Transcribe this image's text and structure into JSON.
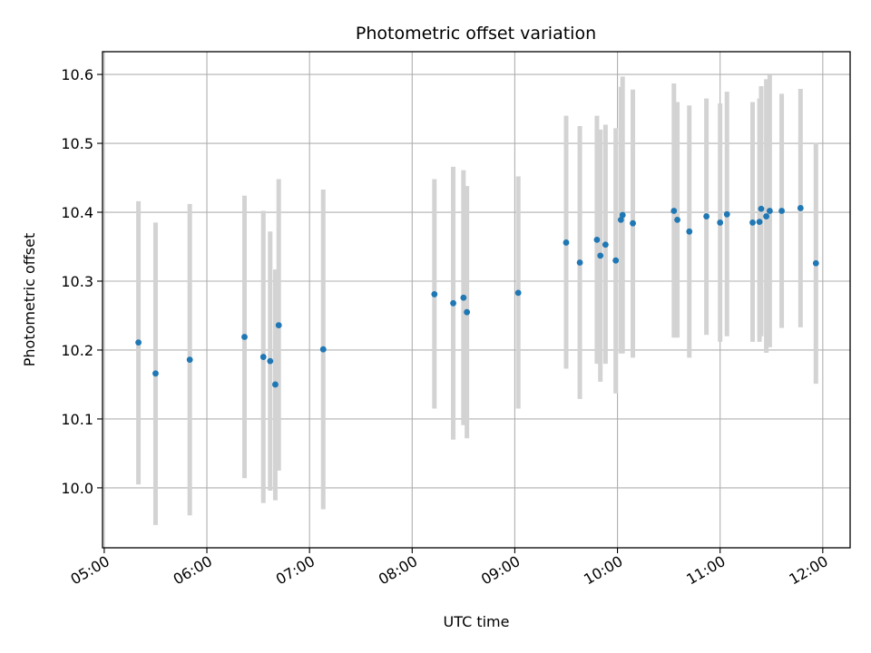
{
  "chart_data": {
    "type": "scatter",
    "title": "Photometric offset variation",
    "xlabel": "UTC time",
    "ylabel": "Photometric offset",
    "x_ticks": [
      "05:00",
      "06:00",
      "07:00",
      "08:00",
      "09:00",
      "10:00",
      "11:00",
      "12:00"
    ],
    "y_ticks": [
      "10.0",
      "10.1",
      "10.2",
      "10.3",
      "10.4",
      "10.5",
      "10.6"
    ],
    "xlim": [
      "04:59",
      "12:16"
    ],
    "ylim": [
      9.913,
      10.633
    ],
    "grid": true,
    "colors": {
      "points": "#1f77b4",
      "errorbars": "#d3d3d3",
      "grid": "#b0b0b0"
    },
    "points": [
      {
        "t": "05:20",
        "y": 10.211,
        "lo": 10.005,
        "hi": 10.416
      },
      {
        "t": "05:30",
        "y": 10.166,
        "lo": 9.946,
        "hi": 10.385
      },
      {
        "t": "05:50",
        "y": 10.186,
        "lo": 9.96,
        "hi": 10.412
      },
      {
        "t": "06:22",
        "y": 10.219,
        "lo": 10.014,
        "hi": 10.424
      },
      {
        "t": "06:33",
        "y": 10.19,
        "lo": 9.978,
        "hi": 10.402
      },
      {
        "t": "06:37",
        "y": 10.184,
        "lo": 9.996,
        "hi": 10.372
      },
      {
        "t": "06:40",
        "y": 10.15,
        "lo": 9.982,
        "hi": 10.317
      },
      {
        "t": "06:42",
        "y": 10.236,
        "lo": 10.025,
        "hi": 10.448
      },
      {
        "t": "07:08",
        "y": 10.201,
        "lo": 9.969,
        "hi": 10.433
      },
      {
        "t": "08:13",
        "y": 10.281,
        "lo": 10.115,
        "hi": 10.448
      },
      {
        "t": "08:24",
        "y": 10.268,
        "lo": 10.07,
        "hi": 10.466
      },
      {
        "t": "08:30",
        "y": 10.276,
        "lo": 10.091,
        "hi": 10.461
      },
      {
        "t": "08:32",
        "y": 10.255,
        "lo": 10.072,
        "hi": 10.438
      },
      {
        "t": "09:02",
        "y": 10.283,
        "lo": 10.115,
        "hi": 10.452
      },
      {
        "t": "09:30",
        "y": 10.356,
        "lo": 10.173,
        "hi": 10.54
      },
      {
        "t": "09:38",
        "y": 10.327,
        "lo": 10.129,
        "hi": 10.525
      },
      {
        "t": "09:48",
        "y": 10.36,
        "lo": 10.18,
        "hi": 10.54
      },
      {
        "t": "09:50",
        "y": 10.337,
        "lo": 10.154,
        "hi": 10.52
      },
      {
        "t": "09:53",
        "y": 10.353,
        "lo": 10.18,
        "hi": 10.527
      },
      {
        "t": "09:59",
        "y": 10.33,
        "lo": 10.137,
        "hi": 10.522
      },
      {
        "t": "10:02",
        "y": 10.389,
        "lo": 10.195,
        "hi": 10.582
      },
      {
        "t": "10:03",
        "y": 10.396,
        "lo": 10.195,
        "hi": 10.597
      },
      {
        "t": "10:09",
        "y": 10.384,
        "lo": 10.189,
        "hi": 10.578
      },
      {
        "t": "10:33",
        "y": 10.402,
        "lo": 10.218,
        "hi": 10.587
      },
      {
        "t": "10:35",
        "y": 10.389,
        "lo": 10.218,
        "hi": 10.56
      },
      {
        "t": "10:42",
        "y": 10.372,
        "lo": 10.189,
        "hi": 10.555
      },
      {
        "t": "10:52",
        "y": 10.394,
        "lo": 10.222,
        "hi": 10.565
      },
      {
        "t": "11:00",
        "y": 10.385,
        "lo": 10.212,
        "hi": 10.558
      },
      {
        "t": "11:04",
        "y": 10.397,
        "lo": 10.22,
        "hi": 10.575
      },
      {
        "t": "11:19",
        "y": 10.385,
        "lo": 10.212,
        "hi": 10.56
      },
      {
        "t": "11:23",
        "y": 10.386,
        "lo": 10.212,
        "hi": 10.565
      },
      {
        "t": "11:24",
        "y": 10.405,
        "lo": 10.22,
        "hi": 10.583
      },
      {
        "t": "11:27",
        "y": 10.394,
        "lo": 10.196,
        "hi": 10.593
      },
      {
        "t": "11:29",
        "y": 10.402,
        "lo": 10.204,
        "hi": 10.599
      },
      {
        "t": "11:36",
        "y": 10.402,
        "lo": 10.232,
        "hi": 10.572
      },
      {
        "t": "11:47",
        "y": 10.406,
        "lo": 10.233,
        "hi": 10.579
      },
      {
        "t": "11:56",
        "y": 10.326,
        "lo": 10.151,
        "hi": 10.501
      }
    ]
  }
}
